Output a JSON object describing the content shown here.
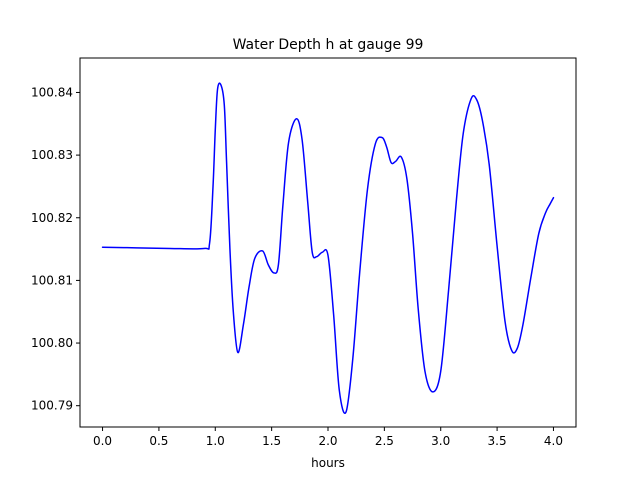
{
  "chart_data": {
    "type": "line",
    "title": "Water Depth h at gauge 99",
    "xlabel": "hours",
    "ylabel": "",
    "xlim": [
      -0.2,
      4.2
    ],
    "ylim": [
      100.7866,
      100.8455
    ],
    "xticks": [
      0.0,
      0.5,
      1.0,
      1.5,
      2.0,
      2.5,
      3.0,
      3.5,
      4.0
    ],
    "xtick_labels": [
      "0.0",
      "0.5",
      "1.0",
      "1.5",
      "2.0",
      "2.5",
      "3.0",
      "3.5",
      "4.0"
    ],
    "yticks": [
      100.79,
      100.8,
      100.81,
      100.82,
      100.83,
      100.84
    ],
    "ytick_labels": [
      "100.79",
      "100.80",
      "100.81",
      "100.82",
      "100.83",
      "100.84"
    ],
    "grid": false,
    "legend": "none",
    "series": [
      {
        "color": "#0000ff",
        "x": [
          0.0,
          0.3,
          0.6,
          0.9,
          0.95,
          0.98,
          1.0,
          1.02,
          1.05,
          1.08,
          1.1,
          1.13,
          1.16,
          1.2,
          1.25,
          1.3,
          1.35,
          1.42,
          1.47,
          1.52,
          1.56,
          1.6,
          1.65,
          1.72,
          1.77,
          1.82,
          1.86,
          1.9,
          1.95,
          2.0,
          2.05,
          2.1,
          2.16,
          2.22,
          2.28,
          2.35,
          2.42,
          2.48,
          2.52,
          2.56,
          2.6,
          2.65,
          2.7,
          2.75,
          2.8,
          2.86,
          2.93,
          3.0,
          3.07,
          3.14,
          3.2,
          3.27,
          3.32,
          3.37,
          3.43,
          3.5,
          3.57,
          3.63,
          3.68,
          3.73,
          3.8,
          3.87,
          3.93,
          3.97,
          4.0
        ],
        "y": [
          100.8153,
          100.8152,
          100.8151,
          100.8151,
          100.816,
          100.825,
          100.834,
          100.8405,
          100.8412,
          100.838,
          100.829,
          100.815,
          100.805,
          100.7985,
          100.803,
          100.809,
          100.8135,
          100.8147,
          100.8125,
          100.8112,
          100.8125,
          100.822,
          100.832,
          100.8358,
          100.8325,
          100.8225,
          100.8145,
          100.8138,
          100.8145,
          100.814,
          100.8045,
          100.7925,
          100.789,
          100.7975,
          100.811,
          100.8245,
          100.8318,
          100.8328,
          100.8313,
          100.8288,
          100.829,
          100.8297,
          100.8262,
          100.8175,
          100.8055,
          100.7955,
          100.7922,
          100.7955,
          100.8085,
          100.823,
          100.8335,
          100.839,
          100.8388,
          100.8355,
          100.8285,
          100.8155,
          100.8035,
          100.7988,
          100.7992,
          100.803,
          100.8105,
          100.8175,
          100.8208,
          100.8222,
          100.8232
        ]
      }
    ]
  }
}
